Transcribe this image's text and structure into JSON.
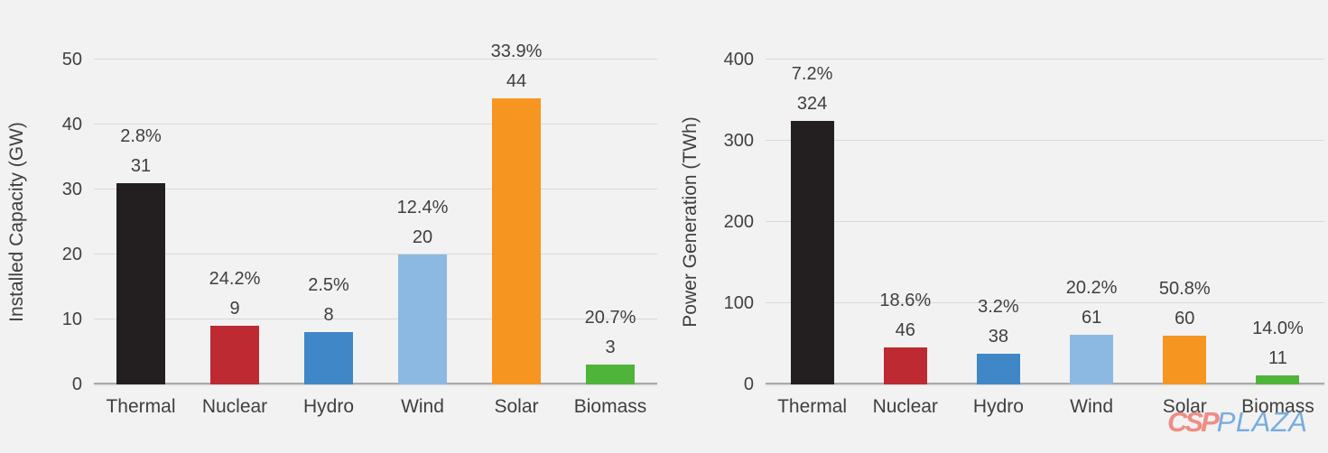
{
  "watermark": {
    "csp": "CSP",
    "plaza": "PLAZA",
    "csp_color": "#ef8d85",
    "plaza_color": "#76acdf"
  },
  "colors": {
    "background": "#f2f2f2",
    "gridline": "#d9d9d9",
    "axis_line": "#ababab",
    "text": "#3f3f3f"
  },
  "chart_data": [
    {
      "type": "bar",
      "title": "",
      "ylabel": "Installed Capacity (GW)",
      "xlabel": "",
      "categories": [
        "Thermal",
        "Nuclear",
        "Hydro",
        "Wind",
        "Solar",
        "Biomass"
      ],
      "values": [
        31,
        9,
        8,
        20,
        44,
        3
      ],
      "pct_labels": [
        "2.8%",
        "24.2%",
        "2.5%",
        "12.4%",
        "33.9%",
        "20.7%"
      ],
      "bar_colors": [
        "#231f20",
        "#bd2a31",
        "#3f87c6",
        "#8cb9e2",
        "#f6951f",
        "#4eb43a"
      ],
      "ylim": [
        0,
        50
      ],
      "yticks": [
        0,
        10,
        20,
        30,
        40,
        50
      ],
      "grid": true,
      "legend": false
    },
    {
      "type": "bar",
      "title": "",
      "ylabel": "Power Generation (TWh)",
      "xlabel": "",
      "categories": [
        "Thermal",
        "Nuclear",
        "Hydro",
        "Wind",
        "Solar",
        "Biomass"
      ],
      "values": [
        324,
        46,
        38,
        61,
        60,
        11
      ],
      "pct_labels": [
        "7.2%",
        "18.6%",
        "3.2%",
        "20.2%",
        "50.8%",
        "14.0%"
      ],
      "bar_colors": [
        "#231f20",
        "#bd2a31",
        "#3f87c6",
        "#8cb9e2",
        "#f6951f",
        "#4eb43a"
      ],
      "ylim": [
        0,
        400
      ],
      "yticks": [
        0,
        100,
        200,
        300,
        400
      ],
      "grid": true,
      "legend": false
    }
  ]
}
